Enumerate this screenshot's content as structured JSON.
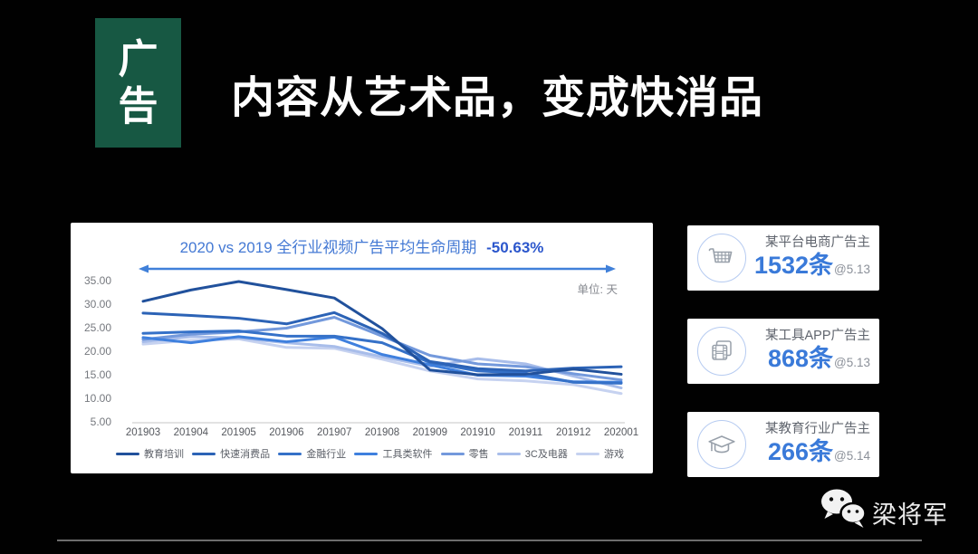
{
  "badge": {
    "char1": "广",
    "char2": "告",
    "bg_color": "#175843"
  },
  "main_title": "内容从艺术品，变成快消品",
  "chart_data": {
    "type": "line",
    "title_main": "2020 vs 2019 全行业视频广告平均生命周期",
    "title_delta": "-50.63%",
    "unit_label": "单位: 天",
    "x": [
      "201903",
      "201904",
      "201905",
      "201906",
      "201907",
      "201908",
      "201909",
      "201910",
      "201911",
      "201912",
      "202001"
    ],
    "ylim": [
      5,
      35
    ],
    "yticks": [
      "35.00",
      "30.00",
      "25.00",
      "20.00",
      "15.00",
      "10.00",
      "5.00"
    ],
    "grid": false,
    "legend_position": "bottom",
    "series": [
      {
        "name": "教育培训",
        "color": "#21519c",
        "values": [
          30.8,
          33.2,
          35.0,
          33.3,
          31.5,
          25.0,
          16.2,
          15.2,
          15.3,
          16.4,
          15.3
        ]
      },
      {
        "name": "快速消费品",
        "color": "#2c63b6",
        "values": [
          28.3,
          27.8,
          27.2,
          26.0,
          28.4,
          24.0,
          18.0,
          16.5,
          16.0,
          16.6,
          16.9
        ]
      },
      {
        "name": "金融行业",
        "color": "#3571c8",
        "values": [
          24.0,
          24.3,
          24.5,
          23.4,
          23.4,
          22.0,
          17.8,
          16.0,
          15.5,
          13.6,
          13.4
        ]
      },
      {
        "name": "工具类软件",
        "color": "#3f80de",
        "values": [
          23.1,
          22.0,
          23.3,
          22.2,
          23.2,
          19.5,
          17.3,
          15.1,
          14.9,
          13.7,
          13.6
        ]
      },
      {
        "name": "零售",
        "color": "#7399dc",
        "values": [
          22.7,
          23.8,
          24.3,
          25.1,
          27.4,
          23.4,
          19.3,
          17.5,
          16.9,
          15.4,
          14.1
        ]
      },
      {
        "name": "3C及电器",
        "color": "#a8bdea",
        "values": [
          22.2,
          23.3,
          23.0,
          22.0,
          21.2,
          19.0,
          17.0,
          18.6,
          17.5,
          14.9,
          12.4
        ]
      },
      {
        "name": "游戏",
        "color": "#c6d2f0",
        "values": [
          21.7,
          22.5,
          22.8,
          21.0,
          20.8,
          18.5,
          16.0,
          14.3,
          13.9,
          13.1,
          11.2
        ]
      }
    ]
  },
  "cards": [
    {
      "icon": "cart-icon",
      "title": "某平台电商广告主",
      "count": "1532",
      "unit": "条",
      "at": "@5.13"
    },
    {
      "icon": "film-icon",
      "title": "某工具APP广告主",
      "count": "868",
      "unit": "条",
      "at": "@5.13"
    },
    {
      "icon": "graduation-cap-icon",
      "title": "某教育行业广告主",
      "count": "266",
      "unit": "条",
      "at": "@5.14"
    }
  ],
  "footer": {
    "author": "梁将军"
  },
  "colors": {
    "badge_green": "#175843",
    "accent_blue": "#3a7ad9",
    "title_blue": "#4479d4",
    "arrow_blue": "#4080d9",
    "card_ring": "#b6cbf1",
    "icon_gray": "#98a0aa"
  }
}
